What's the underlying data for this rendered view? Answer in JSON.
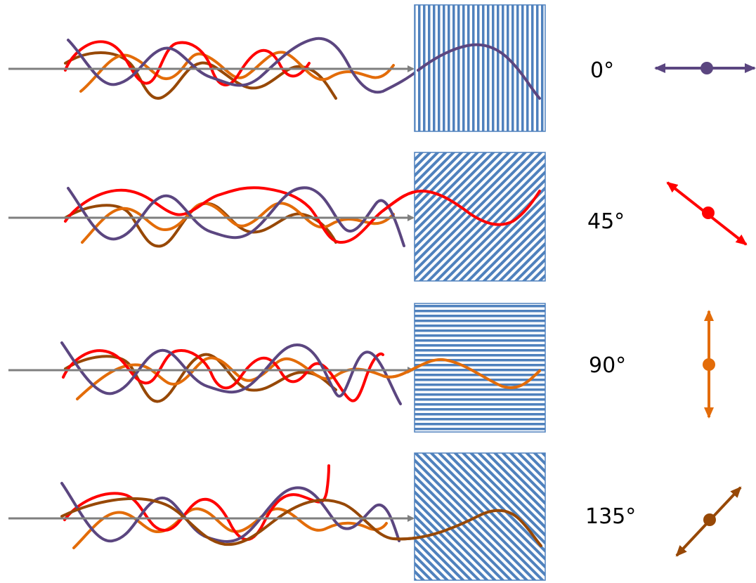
{
  "colors": {
    "purple": "#5b4680",
    "red": "#ff0000",
    "orange": "#e36c09",
    "brown": "#974806",
    "grey": "#7f7f7f",
    "stripe": "#4f81bd"
  },
  "rows": [
    {
      "angle_label": "0°",
      "filter_orientation": "vertical",
      "transmitted": "purple",
      "arrow_icon": "horizontal-double-arrow-icon"
    },
    {
      "angle_label": "45°",
      "filter_orientation": "diagonal-45",
      "transmitted": "red",
      "arrow_icon": "diagonal-down-double-arrow-icon"
    },
    {
      "angle_label": "90°",
      "filter_orientation": "horizontal",
      "transmitted": "orange",
      "arrow_icon": "vertical-double-arrow-icon"
    },
    {
      "angle_label": "135°",
      "filter_orientation": "diagonal-135",
      "transmitted": "brown",
      "arrow_icon": "diagonal-up-double-arrow-icon"
    }
  ]
}
